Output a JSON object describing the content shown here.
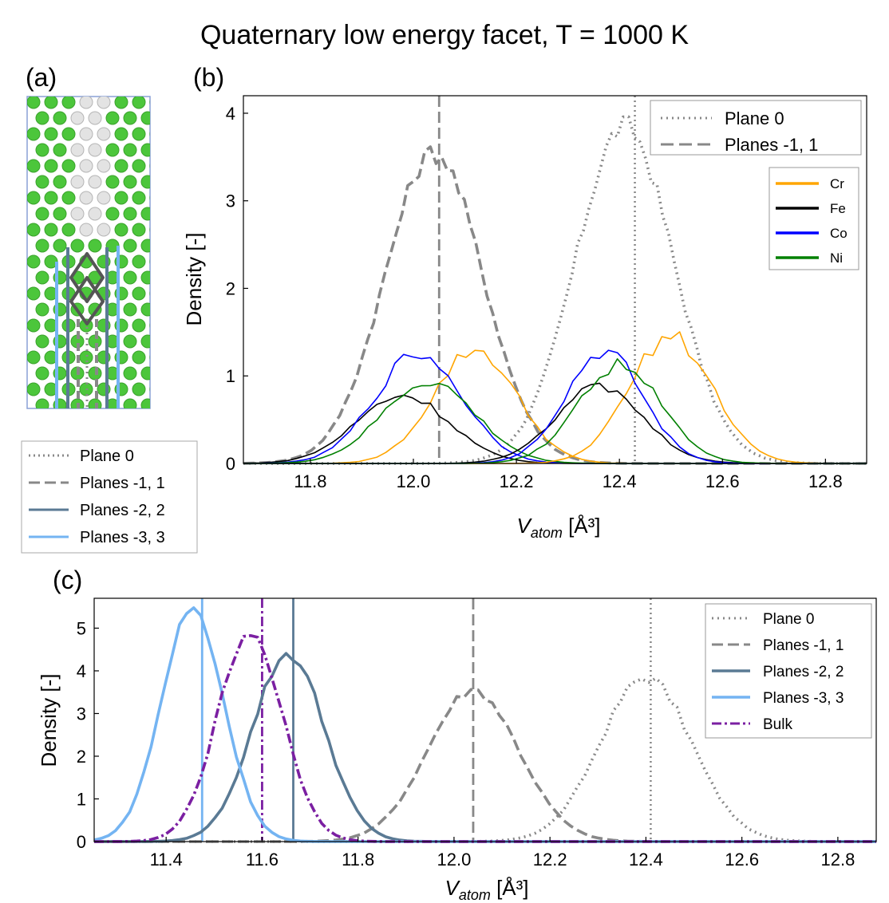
{
  "figure_title": "Quaternary low energy facet, T = 1000 K",
  "panels": {
    "a": "(a)",
    "b": "(b)",
    "c": "(c)"
  },
  "colors": {
    "gray": "#888888",
    "cr": "#ffa500",
    "fe": "#000000",
    "co": "#0000ff",
    "ni": "#008000",
    "p2": "#5a7a94",
    "p3": "#74b4f2",
    "bulk": "#7b1fa2",
    "green_atom": "#4cc63b",
    "white_atom": "#e3e3e3"
  },
  "panel_a_legend": [
    "Plane 0",
    "Planes -1, 1",
    "Planes -2, 2",
    "Planes -3, 3"
  ],
  "chart_data": [
    {
      "id": "b",
      "type": "line",
      "xlabel": "V_atom [Å³]",
      "ylabel": "Density [-]",
      "xlim": [
        11.67,
        12.88
      ],
      "ylim": [
        0,
        4.2
      ],
      "xticks": [
        "11.8",
        "12.0",
        "12.2",
        "12.4",
        "12.6",
        "12.8"
      ],
      "yticks": [
        "0",
        "1",
        "2",
        "3",
        "4"
      ],
      "vlines": [
        {
          "x": 12.05,
          "style": "dashed"
        },
        {
          "x": 12.43,
          "style": "dotted"
        }
      ],
      "legend_main": [
        "Plane 0",
        "Planes -1, 1"
      ],
      "legend_elements": [
        "Cr",
        "Fe",
        "Co",
        "Ni"
      ],
      "series": [
        {
          "name": "Plane 0",
          "style": "dotted",
          "gaussian": [
            12.41,
            0.095,
            3.85
          ]
        },
        {
          "name": "Planes -1, 1",
          "style": "dashed",
          "gaussian": [
            12.04,
            0.095,
            3.55
          ]
        },
        {
          "name": "Cr",
          "group": "Planes -1, 1",
          "gaussian": [
            12.12,
            0.08,
            1.3
          ]
        },
        {
          "name": "Fe",
          "group": "Planes -1, 1",
          "gaussian": [
            11.98,
            0.09,
            0.78
          ]
        },
        {
          "name": "Co",
          "group": "Planes -1, 1",
          "gaussian": [
            12.01,
            0.085,
            1.25
          ]
        },
        {
          "name": "Ni",
          "group": "Planes -1, 1",
          "gaussian": [
            12.03,
            0.09,
            0.93
          ]
        },
        {
          "name": "Cr",
          "group": "Plane 0",
          "gaussian": [
            12.5,
            0.08,
            1.45
          ]
        },
        {
          "name": "Fe",
          "group": "Plane 0",
          "gaussian": [
            12.36,
            0.085,
            0.87
          ]
        },
        {
          "name": "Co",
          "group": "Plane 0",
          "gaussian": [
            12.37,
            0.075,
            1.28
          ]
        },
        {
          "name": "Ni",
          "group": "Plane 0",
          "gaussian": [
            12.4,
            0.08,
            1.13
          ]
        }
      ]
    },
    {
      "id": "c",
      "type": "line",
      "xlabel": "V_atom [Å³]",
      "ylabel": "Density [-]",
      "xlim": [
        11.25,
        12.88
      ],
      "ylim": [
        0,
        5.7
      ],
      "xticks": [
        "11.4",
        "11.6",
        "11.8",
        "12.0",
        "12.2",
        "12.4",
        "12.6",
        "12.8"
      ],
      "yticks": [
        "0",
        "1",
        "2",
        "3",
        "4",
        "5"
      ],
      "vlines": [
        {
          "x": 11.475,
          "style": "solid",
          "series": "Planes -3, 3"
        },
        {
          "x": 11.6,
          "style": "dashdot",
          "series": "Bulk"
        },
        {
          "x": 11.665,
          "style": "solid",
          "series": "Planes -2, 2"
        },
        {
          "x": 12.04,
          "style": "dashed",
          "series": "Planes -1, 1"
        },
        {
          "x": 12.41,
          "style": "dotted",
          "series": "Plane 0"
        }
      ],
      "series": [
        {
          "name": "Plane 0",
          "style": "dotted",
          "gaussian": [
            12.4,
            0.095,
            3.85
          ]
        },
        {
          "name": "Planes -1, 1",
          "style": "dashed",
          "gaussian": [
            12.04,
            0.095,
            3.55
          ]
        },
        {
          "name": "Planes -2, 2",
          "style": "solid",
          "gaussian": [
            11.655,
            0.075,
            4.4
          ]
        },
        {
          "name": "Planes -3, 3",
          "style": "solid",
          "gaussian": [
            11.455,
            0.065,
            5.45
          ]
        },
        {
          "name": "Bulk",
          "style": "dashdot",
          "gaussian": [
            11.575,
            0.068,
            4.9
          ]
        }
      ]
    }
  ]
}
